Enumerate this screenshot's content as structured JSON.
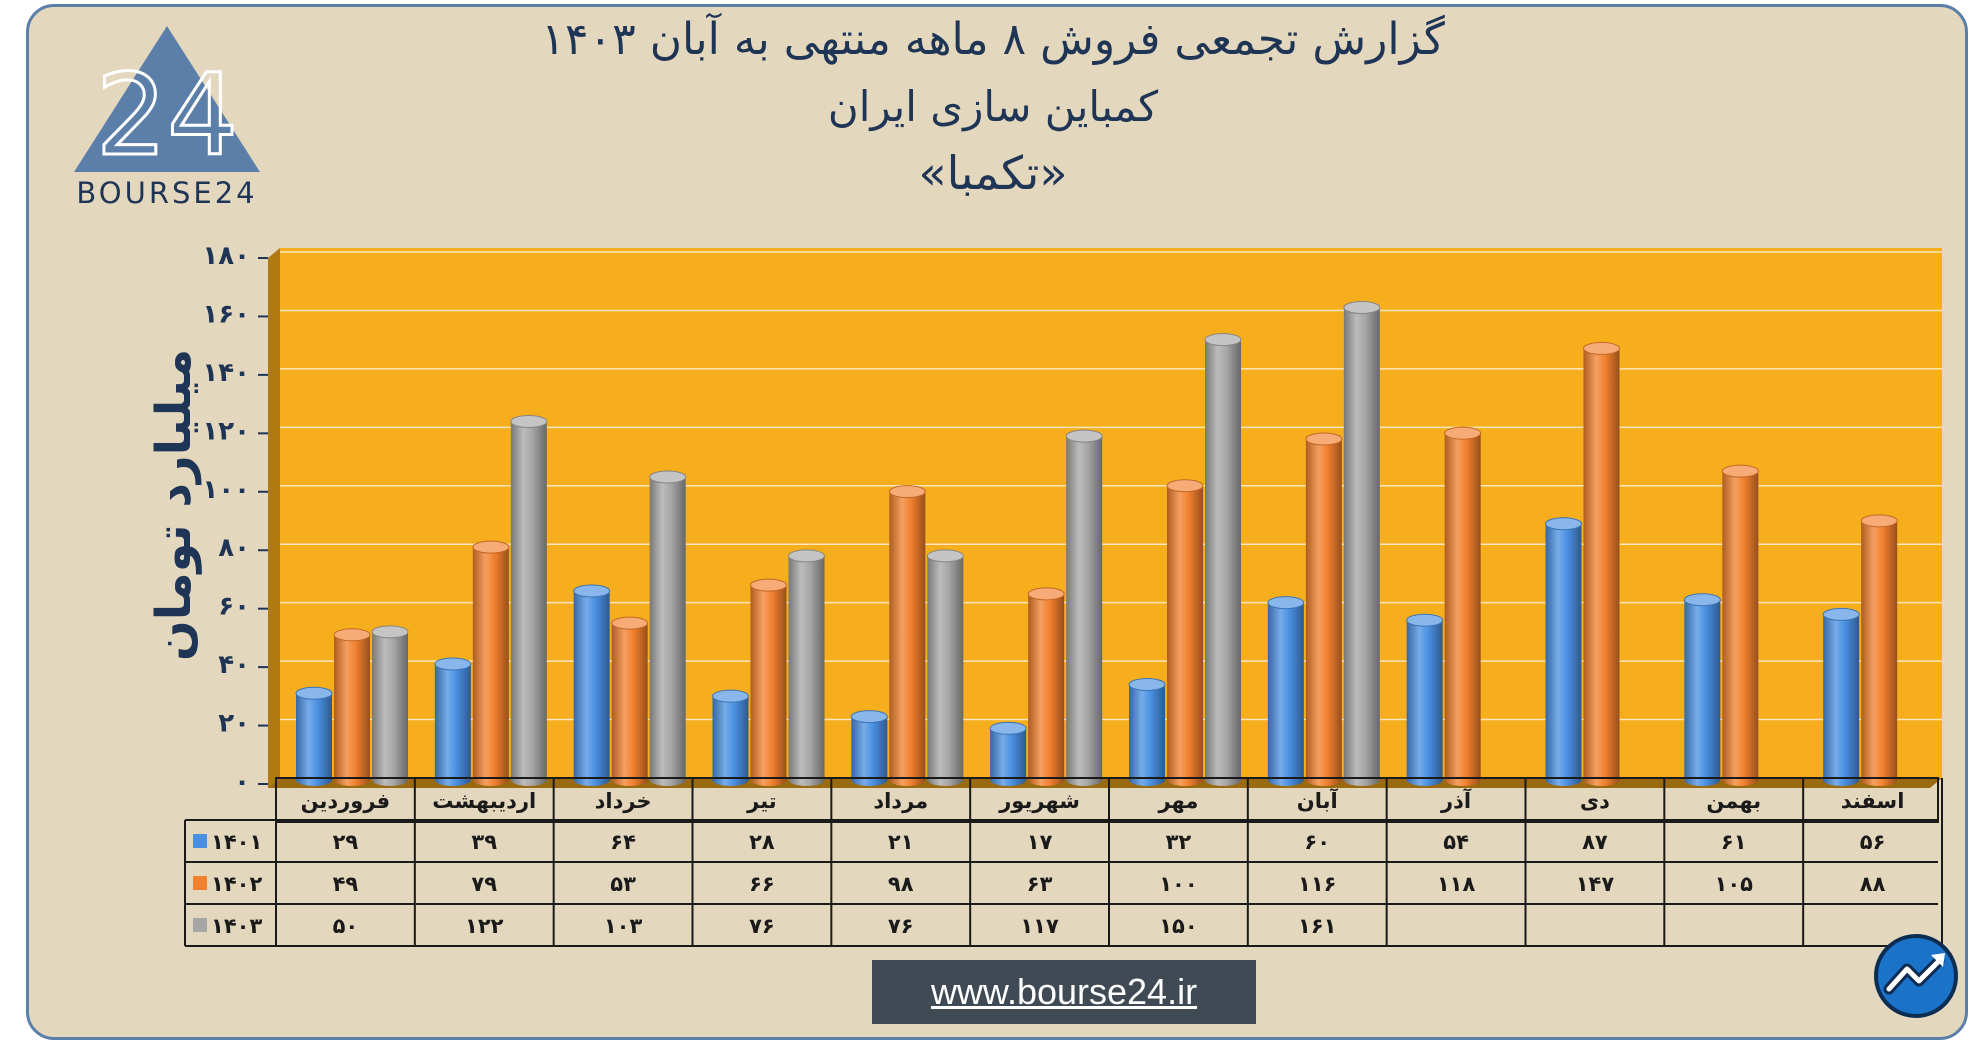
{
  "header": {
    "title_line1": "گزارش تجمعی فروش ۸ ماهه منتهی به آبان ۱۴۰۳",
    "title_line2": "کمباین سازی ایران",
    "title_line3": "«تکمبا»"
  },
  "logo": {
    "text": "BOURSE24",
    "mark": "24",
    "icon": "triangle-logo-icon"
  },
  "footer": {
    "url": "www.bourse24.ir",
    "icon": "trend-arrow-icon"
  },
  "chart_data": {
    "type": "bar",
    "ylabel": "میلیارد تومان",
    "ylim": [
      0,
      180
    ],
    "yticks": [
      "۰",
      "۲۰",
      "۴۰",
      "۶۰",
      "۸۰",
      "۱۰۰",
      "۱۲۰",
      "۱۴۰",
      "۱۶۰",
      "۱۸۰"
    ],
    "grid": true,
    "categories": [
      "فروردین",
      "اردیبهشت",
      "خرداد",
      "تیر",
      "مرداد",
      "شهریور",
      "مهر",
      "آبان",
      "آذر",
      "دی",
      "بهمن",
      "اسفند"
    ],
    "series": [
      {
        "name": "۱۴۰۱",
        "color": "#4a90e2",
        "values": [
          29,
          39,
          64,
          28,
          21,
          17,
          32,
          60,
          54,
          87,
          61,
          56
        ],
        "labels": [
          "۲۹",
          "۳۹",
          "۶۴",
          "۲۸",
          "۲۱",
          "۱۷",
          "۳۲",
          "۶۰",
          "۵۴",
          "۸۷",
          "۶۱",
          "۵۶"
        ]
      },
      {
        "name": "۱۴۰۲",
        "color": "#f2802e",
        "values": [
          49,
          79,
          53,
          66,
          98,
          63,
          100,
          116,
          118,
          147,
          105,
          88
        ],
        "labels": [
          "۴۹",
          "۷۹",
          "۵۳",
          "۶۶",
          "۹۸",
          "۶۳",
          "۱۰۰",
          "۱۱۶",
          "۱۱۸",
          "۱۴۷",
          "۱۰۵",
          "۸۸"
        ]
      },
      {
        "name": "۱۴۰۳",
        "color": "#a6a6a6",
        "values": [
          50,
          122,
          103,
          76,
          76,
          117,
          150,
          161,
          null,
          null,
          null,
          null
        ],
        "labels": [
          "۵۰",
          "۱۲۲",
          "۱۰۳",
          "۷۶",
          "۷۶",
          "۱۱۷",
          "۱۵۰",
          "۱۶۱",
          "",
          "",
          "",
          ""
        ]
      }
    ],
    "plot_background": "#f6ae1c",
    "data_table": true
  }
}
